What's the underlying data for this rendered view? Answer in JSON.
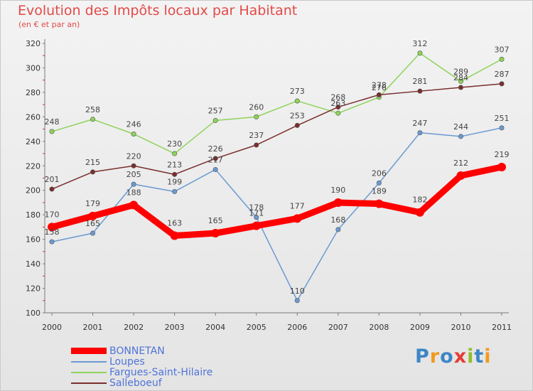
{
  "chart_data": {
    "type": "line",
    "title": "Evolution des Impôts locaux par Habitant",
    "subtitle": "(en € et par an)",
    "xlabel": "",
    "ylabel": "",
    "ylim": [
      100,
      320
    ],
    "yticks": [
      100,
      120,
      140,
      160,
      180,
      200,
      220,
      240,
      260,
      280,
      300,
      320
    ],
    "categories": [
      "2000",
      "2001",
      "2002",
      "2003",
      "2004",
      "2005",
      "2006",
      "2007",
      "2008",
      "2009",
      "2010",
      "2011"
    ],
    "grid": false,
    "series": [
      {
        "name": "BONNETAN",
        "color": "#ff0000",
        "values": [
          170,
          179,
          188,
          163,
          165,
          171,
          177,
          190,
          189,
          182,
          212,
          219
        ]
      },
      {
        "name": "Loupes",
        "color": "#6a9ad2",
        "values": [
          158,
          165,
          205,
          199,
          217,
          178,
          110,
          168,
          206,
          247,
          244,
          251
        ]
      },
      {
        "name": "Fargues-Saint-Hilaire",
        "color": "#8ed35a",
        "values": [
          248,
          258,
          246,
          230,
          257,
          260,
          273,
          263,
          276,
          312,
          289,
          307
        ]
      },
      {
        "name": "Salleboeuf",
        "color": "#7a2e2e",
        "values": [
          201,
          215,
          220,
          213,
          226,
          237,
          253,
          268,
          278,
          281,
          284,
          287
        ]
      }
    ]
  },
  "legend": {
    "items": [
      {
        "label": "BONNETAN",
        "color": "#ff0000"
      },
      {
        "label": "Loupes",
        "color": "#6a9ad2"
      },
      {
        "label": "Fargues-Saint-Hilaire",
        "color": "#8ed35a"
      },
      {
        "label": "Salleboeuf",
        "color": "#7a2e2e"
      }
    ]
  },
  "logo": {
    "text": "Proxiti",
    "letters": [
      {
        "char": "P",
        "color": "#3d86c6"
      },
      {
        "char": "r",
        "color": "#f29a1f"
      },
      {
        "char": "o",
        "color": "#3d86c6"
      },
      {
        "char": "x",
        "color": "#e63c36"
      },
      {
        "char": "i",
        "color": "#8fbf2a"
      },
      {
        "char": "t",
        "color": "#3d86c6"
      },
      {
        "char": "i",
        "color": "#f29a1f"
      }
    ]
  }
}
